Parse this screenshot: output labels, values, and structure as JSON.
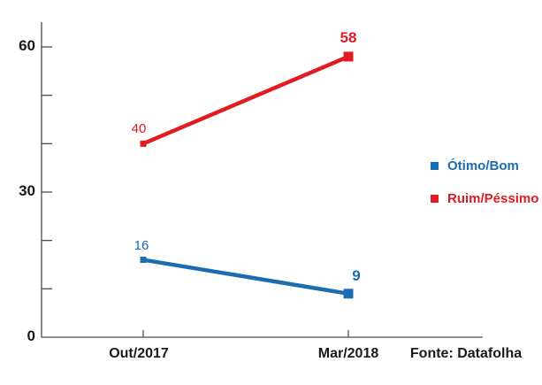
{
  "chart_data": {
    "type": "line",
    "title": "",
    "xlabel": "",
    "ylabel": "",
    "categories": [
      "Out/2017",
      "Mar/2018"
    ],
    "series": [
      {
        "name": "Ótimo/Bom",
        "values": [
          16,
          9
        ],
        "color": "#1c6cb1",
        "point_labels": [
          "16",
          "9"
        ]
      },
      {
        "name": "Ruim/Péssimo",
        "values": [
          40,
          58
        ],
        "color": "#e01b24",
        "point_labels": [
          "40",
          "58"
        ]
      }
    ],
    "ylim": [
      0,
      65
    ],
    "yticks_minor": [
      10,
      20,
      30,
      40,
      50,
      60
    ],
    "yticks_labeled": [
      "0",
      "30",
      "60"
    ],
    "yticks_labeled_values": [
      0,
      30,
      60
    ],
    "grid": false,
    "legend_position": "right",
    "source": "Fonte: Datafolha",
    "axis_color": "#4d4d4d",
    "background_color": "#ffffff",
    "marker_shape": "square"
  }
}
